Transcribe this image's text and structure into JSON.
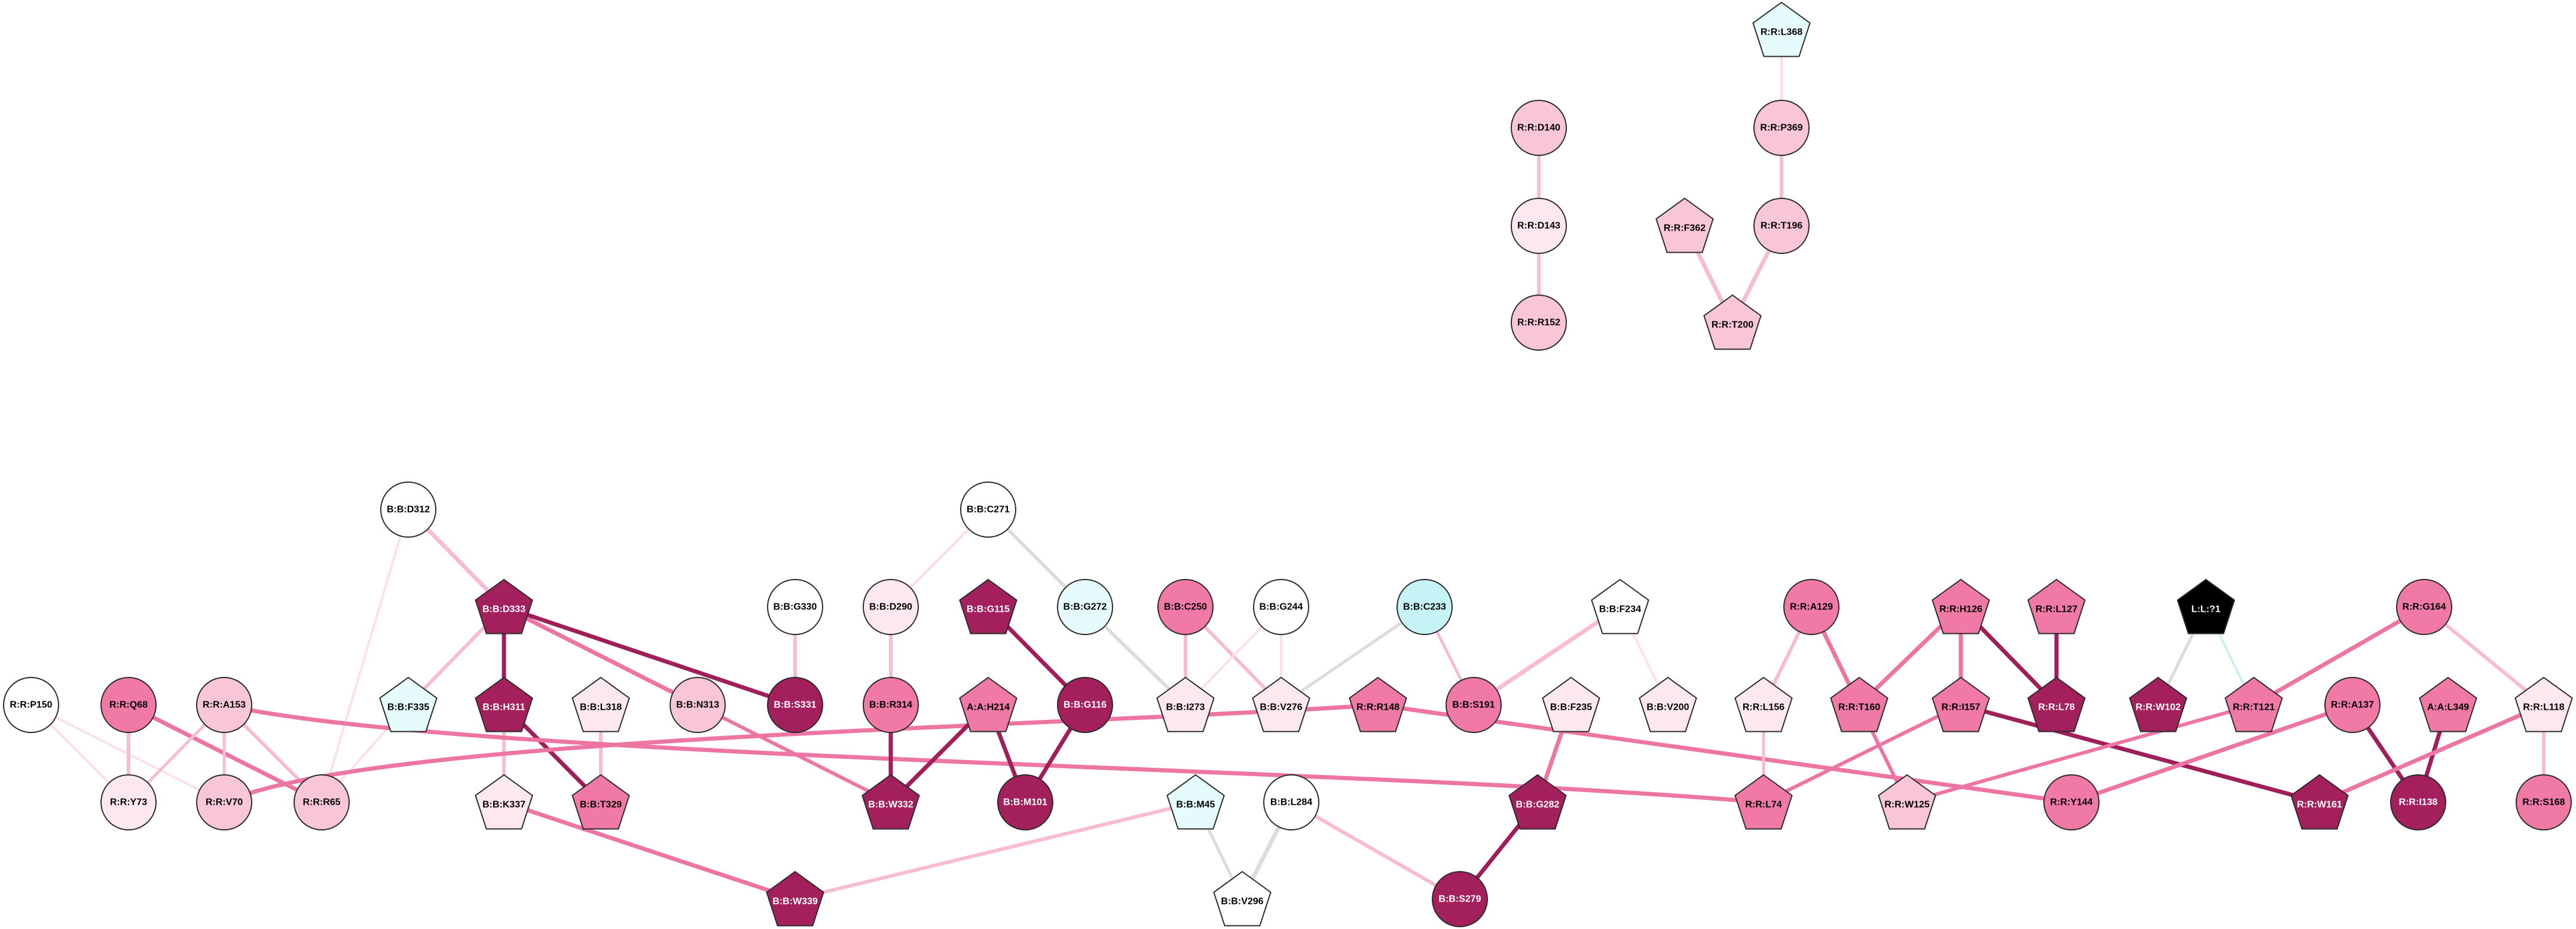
{
  "colors": {
    "white": "#ffffff",
    "vlpink": "#fde8ef",
    "lpink": "#f9c6d8",
    "mpink": "#f07aa5",
    "dmag": "#a3205c",
    "lcyan": "#e6fbfb",
    "cyan": "#c6f4f6",
    "black": "#000000",
    "edge_grey": "#dcdcdc",
    "edge_vlpink": "#fde0ea",
    "edge_lpink": "#f7bcd2",
    "edge_mpink": "#ec75a2",
    "edge_dmag": "#9e1f5a",
    "edge_cyan": "#c8f2f2"
  },
  "nodes": [
    {
      "id": "R:R:L368",
      "label": "R:R:L368",
      "shape": "pentagon",
      "fill": "lcyan"
    },
    {
      "id": "R:R:P369",
      "label": "R:R:P369",
      "shape": "circle",
      "fill": "lpink"
    },
    {
      "id": "R:R:T196",
      "label": "R:R:T196",
      "shape": "circle",
      "fill": "lpink"
    },
    {
      "id": "R:R:F362",
      "label": "R:R:F362",
      "shape": "pentagon",
      "fill": "lpink"
    },
    {
      "id": "R:R:T200",
      "label": "R:R:T200",
      "shape": "pentagon",
      "fill": "lpink"
    },
    {
      "id": "R:R:D140",
      "label": "R:R:D140",
      "shape": "circle",
      "fill": "lpink"
    },
    {
      "id": "R:R:D143",
      "label": "R:R:D143",
      "shape": "circle",
      "fill": "vlpink"
    },
    {
      "id": "R:R:R152",
      "label": "R:R:R152",
      "shape": "circle",
      "fill": "lpink"
    },
    {
      "id": "B:B:D312",
      "label": "B:B:D312",
      "shape": "circle",
      "fill": "white"
    },
    {
      "id": "B:B:D333",
      "label": "B:B:D333",
      "shape": "pentagon",
      "fill": "dmag"
    },
    {
      "id": "B:B:F335",
      "label": "B:B:F335",
      "shape": "pentagon",
      "fill": "lcyan"
    },
    {
      "id": "B:B:H311",
      "label": "B:B:H311",
      "shape": "pentagon",
      "fill": "dmag"
    },
    {
      "id": "B:B:L318",
      "label": "B:B:L318",
      "shape": "pentagon",
      "fill": "vlpink"
    },
    {
      "id": "B:B:N313",
      "label": "B:B:N313",
      "shape": "circle",
      "fill": "lpink"
    },
    {
      "id": "B:B:G330",
      "label": "B:B:G330",
      "shape": "circle",
      "fill": "white"
    },
    {
      "id": "B:B:S331",
      "label": "B:B:S331",
      "shape": "circle",
      "fill": "dmag"
    },
    {
      "id": "B:B:K337",
      "label": "B:B:K337",
      "shape": "pentagon",
      "fill": "vlpink"
    },
    {
      "id": "B:B:T329",
      "label": "B:B:T329",
      "shape": "pentagon",
      "fill": "mpink"
    },
    {
      "id": "B:B:W339",
      "label": "B:B:W339",
      "shape": "pentagon",
      "fill": "dmag"
    },
    {
      "id": "R:R:P150",
      "label": "R:R:P150",
      "shape": "circle",
      "fill": "white"
    },
    {
      "id": "R:R:Q68",
      "label": "R:R:Q68",
      "shape": "circle",
      "fill": "mpink"
    },
    {
      "id": "R:R:A153",
      "label": "R:R:A153",
      "shape": "circle",
      "fill": "lpink"
    },
    {
      "id": "R:R:Y73",
      "label": "R:R:Y73",
      "shape": "circle",
      "fill": "vlpink"
    },
    {
      "id": "R:R:V70",
      "label": "R:R:V70",
      "shape": "circle",
      "fill": "lpink"
    },
    {
      "id": "R:R:R65",
      "label": "R:R:R65",
      "shape": "circle",
      "fill": "lpink"
    },
    {
      "id": "B:B:C271",
      "label": "B:B:C271",
      "shape": "circle",
      "fill": "white"
    },
    {
      "id": "B:B:D290",
      "label": "B:B:D290",
      "shape": "circle",
      "fill": "vlpink"
    },
    {
      "id": "B:B:G115",
      "label": "B:B:G115",
      "shape": "pentagon",
      "fill": "dmag"
    },
    {
      "id": "B:B:G272",
      "label": "B:B:G272",
      "shape": "circle",
      "fill": "lcyan"
    },
    {
      "id": "B:B:R314",
      "label": "B:B:R314",
      "shape": "circle",
      "fill": "mpink"
    },
    {
      "id": "A:A:H214",
      "label": "A:A:H214",
      "shape": "pentagon",
      "fill": "mpink"
    },
    {
      "id": "B:B:G116",
      "label": "B:B:G116",
      "shape": "circle",
      "fill": "dmag"
    },
    {
      "id": "B:B:W332",
      "label": "B:B:W332",
      "shape": "pentagon",
      "fill": "dmag"
    },
    {
      "id": "B:B:M101",
      "label": "B:B:M101",
      "shape": "circle",
      "fill": "dmag"
    },
    {
      "id": "B:B:C250",
      "label": "B:B:C250",
      "shape": "circle",
      "fill": "mpink"
    },
    {
      "id": "B:B:G244",
      "label": "B:B:G244",
      "shape": "circle",
      "fill": "white"
    },
    {
      "id": "B:B:C233",
      "label": "B:B:C233",
      "shape": "circle",
      "fill": "cyan"
    },
    {
      "id": "B:B:I273",
      "label": "B:B:I273",
      "shape": "pentagon",
      "fill": "vlpink"
    },
    {
      "id": "B:B:V276",
      "label": "B:B:V276",
      "shape": "pentagon",
      "fill": "vlpink"
    },
    {
      "id": "R:R:R148",
      "label": "R:R:R148",
      "shape": "pentagon",
      "fill": "mpink"
    },
    {
      "id": "B:B:S191",
      "label": "B:B:S191",
      "shape": "circle",
      "fill": "mpink"
    },
    {
      "id": "B:B:F234",
      "label": "B:B:F234",
      "shape": "pentagon",
      "fill": "white"
    },
    {
      "id": "B:B:F235",
      "label": "B:B:F235",
      "shape": "pentagon",
      "fill": "vlpink"
    },
    {
      "id": "B:B:V200",
      "label": "B:B:V200",
      "shape": "pentagon",
      "fill": "vlpink"
    },
    {
      "id": "B:B:M45",
      "label": "B:B:M45",
      "shape": "pentagon",
      "fill": "lcyan"
    },
    {
      "id": "B:B:L284",
      "label": "B:B:L284",
      "shape": "circle",
      "fill": "white"
    },
    {
      "id": "B:B:G282",
      "label": "B:B:G282",
      "shape": "pentagon",
      "fill": "dmag"
    },
    {
      "id": "B:B:V296",
      "label": "B:B:V296",
      "shape": "pentagon",
      "fill": "white"
    },
    {
      "id": "B:B:S279",
      "label": "B:B:S279",
      "shape": "circle",
      "fill": "dmag"
    },
    {
      "id": "R:R:A129",
      "label": "R:R:A129",
      "shape": "circle",
      "fill": "mpink"
    },
    {
      "id": "R:R:L156",
      "label": "R:R:L156",
      "shape": "pentagon",
      "fill": "vlpink"
    },
    {
      "id": "R:R:T160",
      "label": "R:R:T160",
      "shape": "pentagon",
      "fill": "mpink"
    },
    {
      "id": "R:R:L74",
      "label": "R:R:L74",
      "shape": "pentagon",
      "fill": "mpink"
    },
    {
      "id": "R:R:H126",
      "label": "R:R:H126",
      "shape": "pentagon",
      "fill": "mpink"
    },
    {
      "id": "R:R:I157",
      "label": "R:R:I157",
      "shape": "pentagon",
      "fill": "mpink"
    },
    {
      "id": "R:R:W125",
      "label": "R:R:W125",
      "shape": "pentagon",
      "fill": "lpink"
    },
    {
      "id": "R:R:L127",
      "label": "R:R:L127",
      "shape": "pentagon",
      "fill": "mpink"
    },
    {
      "id": "R:R:L78",
      "label": "R:R:L78",
      "shape": "pentagon",
      "fill": "dmag"
    },
    {
      "id": "R:R:Y144",
      "label": "R:R:Y144",
      "shape": "circle",
      "fill": "mpink"
    },
    {
      "id": "L:L:?1",
      "label": "L:L:?1",
      "shape": "pentagon",
      "fill": "black"
    },
    {
      "id": "R:R:W102",
      "label": "R:R:W102",
      "shape": "pentagon",
      "fill": "dmag"
    },
    {
      "id": "R:R:T121",
      "label": "R:R:T121",
      "shape": "pentagon",
      "fill": "mpink"
    },
    {
      "id": "R:R:G164",
      "label": "R:R:G164",
      "shape": "circle",
      "fill": "mpink"
    },
    {
      "id": "R:R:A137",
      "label": "R:R:A137",
      "shape": "circle",
      "fill": "mpink"
    },
    {
      "id": "R:R:W161",
      "label": "R:R:W161",
      "shape": "pentagon",
      "fill": "dmag"
    },
    {
      "id": "R:R:I138",
      "label": "R:R:I138",
      "shape": "circle",
      "fill": "dmag"
    },
    {
      "id": "A:A:L349",
      "label": "A:A:L349",
      "shape": "pentagon",
      "fill": "mpink"
    },
    {
      "id": "R:R:L118",
      "label": "R:R:L118",
      "shape": "pentagon",
      "fill": "vlpink"
    },
    {
      "id": "R:R:S168",
      "label": "R:R:S168",
      "shape": "circle",
      "fill": "mpink"
    }
  ],
  "edges": [
    {
      "source": "R:R:L368",
      "target": "R:R:P369",
      "color": "edge_vlpink",
      "weight": 5
    },
    {
      "source": "R:R:P369",
      "target": "R:R:T196",
      "color": "edge_lpink",
      "weight": 6
    },
    {
      "source": "R:R:T196",
      "target": "R:R:T200",
      "color": "edge_lpink",
      "weight": 7
    },
    {
      "source": "R:R:F362",
      "target": "R:R:T200",
      "color": "edge_lpink",
      "weight": 7
    },
    {
      "source": "R:R:D140",
      "target": "R:R:D143",
      "color": "edge_lpink",
      "weight": 6
    },
    {
      "source": "R:R:D143",
      "target": "R:R:R152",
      "color": "edge_lpink",
      "weight": 6
    },
    {
      "source": "B:B:D312",
      "target": "B:B:D333",
      "color": "edge_lpink",
      "weight": 7
    },
    {
      "source": "B:B:D312",
      "target": "R:R:R65",
      "color": "edge_vlpink",
      "weight": 4
    },
    {
      "source": "B:B:D333",
      "target": "B:B:S331",
      "color": "edge_dmag",
      "weight": 7
    },
    {
      "source": "B:B:D333",
      "target": "B:B:H311",
      "color": "edge_dmag",
      "weight": 7
    },
    {
      "source": "B:B:D333",
      "target": "B:B:F335",
      "color": "edge_lpink",
      "weight": 6
    },
    {
      "source": "B:B:D333",
      "target": "B:B:N313",
      "color": "edge_mpink",
      "weight": 7
    },
    {
      "source": "B:B:F335",
      "target": "R:R:R65",
      "color": "edge_vlpink",
      "weight": 4
    },
    {
      "source": "B:B:H311",
      "target": "B:B:K337",
      "color": "edge_lpink",
      "weight": 6
    },
    {
      "source": "B:B:H311",
      "target": "B:B:T329",
      "color": "edge_dmag",
      "weight": 7
    },
    {
      "source": "B:B:L318",
      "target": "B:B:T329",
      "color": "edge_lpink",
      "weight": 6
    },
    {
      "source": "B:B:G330",
      "target": "B:B:S331",
      "color": "edge_lpink",
      "weight": 6
    },
    {
      "source": "B:B:N313",
      "target": "B:B:W332",
      "color": "edge_mpink",
      "weight": 6
    },
    {
      "source": "B:B:K337",
      "target": "B:B:W339",
      "color": "edge_mpink",
      "weight": 7
    },
    {
      "source": "B:B:W339",
      "target": "B:B:M45",
      "color": "edge_lpink",
      "weight": 6
    },
    {
      "source": "R:R:P150",
      "target": "R:R:Y73",
      "color": "edge_vlpink",
      "weight": 4
    },
    {
      "source": "R:R:P150",
      "target": "R:R:V70",
      "color": "edge_vlpink",
      "weight": 4
    },
    {
      "source": "R:R:Q68",
      "target": "R:R:Y73",
      "color": "edge_lpink",
      "weight": 6
    },
    {
      "source": "R:R:Q68",
      "target": "R:R:R65",
      "color": "edge_mpink",
      "weight": 7
    },
    {
      "source": "R:R:A153",
      "target": "R:R:Y73",
      "color": "edge_lpink",
      "weight": 5
    },
    {
      "source": "R:R:A153",
      "target": "R:R:V70",
      "color": "edge_lpink",
      "weight": 5
    },
    {
      "source": "R:R:A153",
      "target": "R:R:R65",
      "color": "edge_lpink",
      "weight": 6
    },
    {
      "source": "R:R:A153",
      "target": "R:R:L74",
      "color": "edge_mpink",
      "weight": 7,
      "curve": "low"
    },
    {
      "source": "R:R:V70",
      "target": "R:R:R148",
      "color": "edge_mpink",
      "weight": 7,
      "curve": "high"
    },
    {
      "source": "B:B:C271",
      "target": "B:B:D290",
      "color": "edge_vlpink",
      "weight": 5
    },
    {
      "source": "B:B:C271",
      "target": "B:B:G272",
      "color": "edge_grey",
      "weight": 6
    },
    {
      "source": "B:B:D290",
      "target": "B:B:R314",
      "color": "edge_lpink",
      "weight": 6
    },
    {
      "source": "B:B:R314",
      "target": "B:B:W332",
      "color": "edge_dmag",
      "weight": 7
    },
    {
      "source": "B:B:G272",
      "target": "B:B:I273",
      "color": "edge_grey",
      "weight": 6
    },
    {
      "source": "B:B:G115",
      "target": "B:B:G116",
      "color": "edge_dmag",
      "weight": 7
    },
    {
      "source": "A:A:H214",
      "target": "B:B:W332",
      "color": "edge_dmag",
      "weight": 7
    },
    {
      "source": "A:A:H214",
      "target": "B:B:M101",
      "color": "edge_dmag",
      "weight": 7
    },
    {
      "source": "B:B:G116",
      "target": "B:B:M101",
      "color": "edge_dmag",
      "weight": 7
    },
    {
      "source": "B:B:C250",
      "target": "B:B:I273",
      "color": "edge_lpink",
      "weight": 6
    },
    {
      "source": "B:B:C250",
      "target": "B:B:V276",
      "color": "edge_lpink",
      "weight": 6
    },
    {
      "source": "B:B:G244",
      "target": "B:B:I273",
      "color": "edge_vlpink",
      "weight": 4
    },
    {
      "source": "B:B:G244",
      "target": "B:B:V276",
      "color": "edge_vlpink",
      "weight": 4
    },
    {
      "source": "B:B:C233",
      "target": "B:B:V276",
      "color": "edge_grey",
      "weight": 5
    },
    {
      "source": "B:B:C233",
      "target": "B:B:S191",
      "color": "edge_lpink",
      "weight": 5
    },
    {
      "source": "R:R:R148",
      "target": "R:R:Y144",
      "color": "edge_mpink",
      "weight": 7
    },
    {
      "source": "B:B:F234",
      "target": "B:B:S191",
      "color": "edge_lpink",
      "weight": 7
    },
    {
      "source": "B:B:F234",
      "target": "B:B:V200",
      "color": "edge_vlpink",
      "weight": 4
    },
    {
      "source": "B:B:F235",
      "target": "B:B:G282",
      "color": "edge_mpink",
      "weight": 7
    },
    {
      "source": "B:B:G282",
      "target": "B:B:S279",
      "color": "edge_dmag",
      "weight": 7
    },
    {
      "source": "B:B:M45",
      "target": "B:B:V296",
      "color": "edge_grey",
      "weight": 5
    },
    {
      "source": "B:B:L284",
      "target": "B:B:V296",
      "color": "edge_grey",
      "weight": 7
    },
    {
      "source": "B:B:L284",
      "target": "B:B:S279",
      "color": "edge_lpink",
      "weight": 6
    },
    {
      "source": "R:R:A129",
      "target": "R:R:L156",
      "color": "edge_lpink",
      "weight": 6
    },
    {
      "source": "R:R:A129",
      "target": "R:R:T160",
      "color": "edge_mpink",
      "weight": 7
    },
    {
      "source": "R:R:L156",
      "target": "R:R:L74",
      "color": "edge_lpink",
      "weight": 5
    },
    {
      "source": "R:R:T160",
      "target": "R:R:W125",
      "color": "edge_mpink",
      "weight": 6
    },
    {
      "source": "R:R:H126",
      "target": "R:R:T160",
      "color": "edge_mpink",
      "weight": 7
    },
    {
      "source": "R:R:H126",
      "target": "R:R:I157",
      "color": "edge_mpink",
      "weight": 7
    },
    {
      "source": "R:R:H126",
      "target": "R:R:L78",
      "color": "edge_dmag",
      "weight": 7
    },
    {
      "source": "R:R:I157",
      "target": "R:R:L74",
      "color": "edge_mpink",
      "weight": 6
    },
    {
      "source": "R:R:I157",
      "target": "R:R:W161",
      "color": "edge_dmag",
      "weight": 7
    },
    {
      "source": "R:R:L127",
      "target": "R:R:L78",
      "color": "edge_dmag",
      "weight": 7
    },
    {
      "source": "L:L:?1",
      "target": "R:R:W102",
      "color": "edge_grey",
      "weight": 5
    },
    {
      "source": "L:L:?1",
      "target": "R:R:T121",
      "color": "edge_cyan",
      "weight": 4
    },
    {
      "source": "R:R:G164",
      "target": "R:R:T121",
      "color": "edge_mpink",
      "weight": 7
    },
    {
      "source": "R:R:G164",
      "target": "R:R:L118",
      "color": "edge_lpink",
      "weight": 6
    },
    {
      "source": "R:R:T121",
      "target": "R:R:W125",
      "color": "edge_mpink",
      "weight": 6
    },
    {
      "source": "R:R:A137",
      "target": "R:R:Y144",
      "color": "edge_mpink",
      "weight": 7
    },
    {
      "source": "R:R:A137",
      "target": "R:R:I138",
      "color": "edge_dmag",
      "weight": 7
    },
    {
      "source": "A:A:L349",
      "target": "R:R:I138",
      "color": "edge_dmag",
      "weight": 7
    },
    {
      "source": "R:R:L118",
      "target": "R:R:W161",
      "color": "edge_mpink",
      "weight": 7
    },
    {
      "source": "R:R:L118",
      "target": "R:R:S168",
      "color": "edge_lpink",
      "weight": 6
    }
  ]
}
